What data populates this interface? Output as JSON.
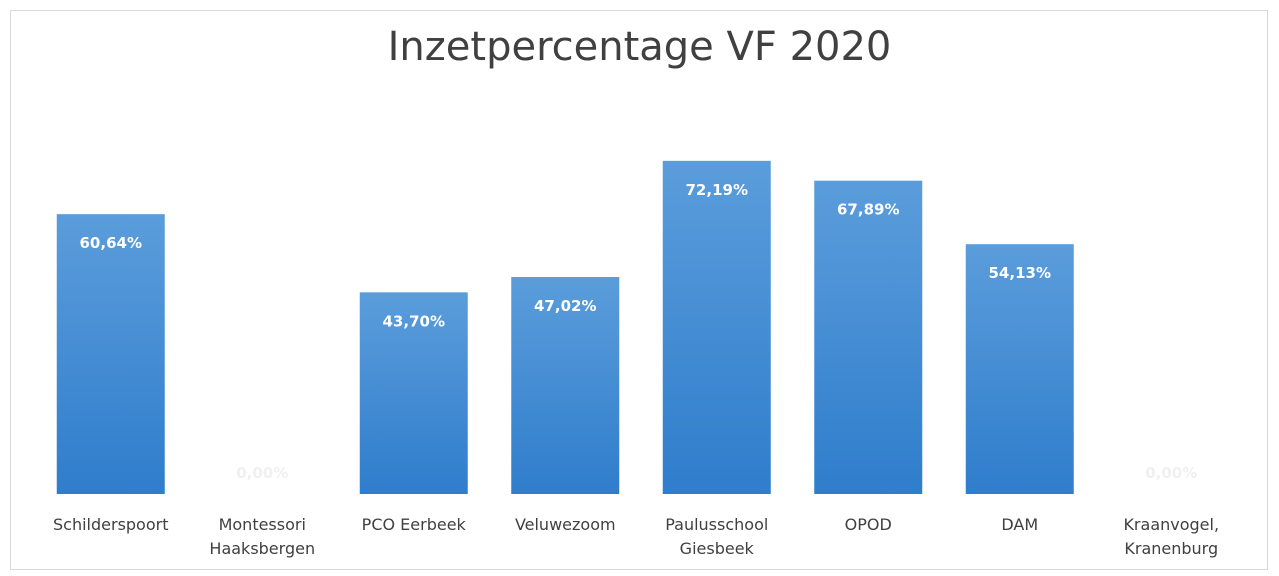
{
  "chart_data": {
    "type": "bar",
    "title": "Inzetpercentage VF 2020",
    "categories": [
      "Schilderspoort",
      "Montessori\nHaaksbergen",
      "PCO Eerbeek",
      "Veluwezoom",
      "Paulusschool\nGiesbeek",
      "OPOD",
      "DAM",
      "Kraanvogel,\nKranenburg"
    ],
    "values": [
      60.64,
      0,
      43.7,
      47.02,
      72.19,
      67.89,
      54.13,
      0
    ],
    "value_labels": [
      "60,64%",
      "0,00%",
      "43,70%",
      "47,02%",
      "72,19%",
      "67,89%",
      "54,13%",
      "0,00%"
    ],
    "color": "#4a8fd6"
  }
}
